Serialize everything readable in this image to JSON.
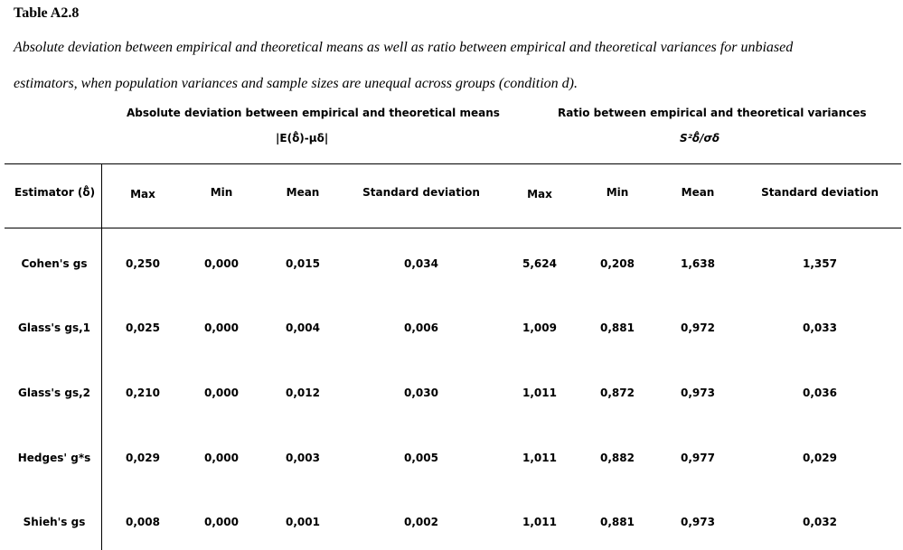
{
  "table": {
    "title": "Table A2.8",
    "caption_line1": "Absolute deviation between empirical and theoretical means as well as ratio between empirical and theoretical variances for unbiased",
    "caption_line2": "estimators, when population variances and sample sizes are unequal across groups (condition d).",
    "group_left": {
      "label": "Absolute deviation between empirical and theoretical means",
      "formula": "|E(δ̂)-μδ|"
    },
    "group_right": {
      "label": "Ratio between empirical and theoretical variances",
      "formula": "S²δ̂/σδ"
    },
    "estimator_header": "Estimator (δ̂)",
    "columns": [
      "Max",
      "Min",
      "Mean",
      "Standard deviation",
      "Max",
      "Min",
      "Mean",
      "Standard deviation"
    ],
    "rows": [
      {
        "estimator": "Cohen's gs",
        "values": [
          "0,250",
          "0,000",
          "0,015",
          "0,034",
          "5,624",
          "0,208",
          "1,638",
          "1,357"
        ]
      },
      {
        "estimator": "Glass's gs,1",
        "values": [
          "0,025",
          "0,000",
          "0,004",
          "0,006",
          "1,009",
          "0,881",
          "0,972",
          "0,033"
        ]
      },
      {
        "estimator": "Glass's gs,2",
        "values": [
          "0,210",
          "0,000",
          "0,012",
          "0,030",
          "1,011",
          "0,872",
          "0,973",
          "0,036"
        ]
      },
      {
        "estimator": "Hedges' g*s",
        "values": [
          "0,029",
          "0,000",
          "0,003",
          "0,005",
          "1,011",
          "0,882",
          "0,977",
          "0,029"
        ]
      },
      {
        "estimator": "Shieh's gs",
        "values": [
          "0,008",
          "0,000",
          "0,001",
          "0,002",
          "1,011",
          "0,881",
          "0,973",
          "0,032"
        ]
      }
    ]
  }
}
